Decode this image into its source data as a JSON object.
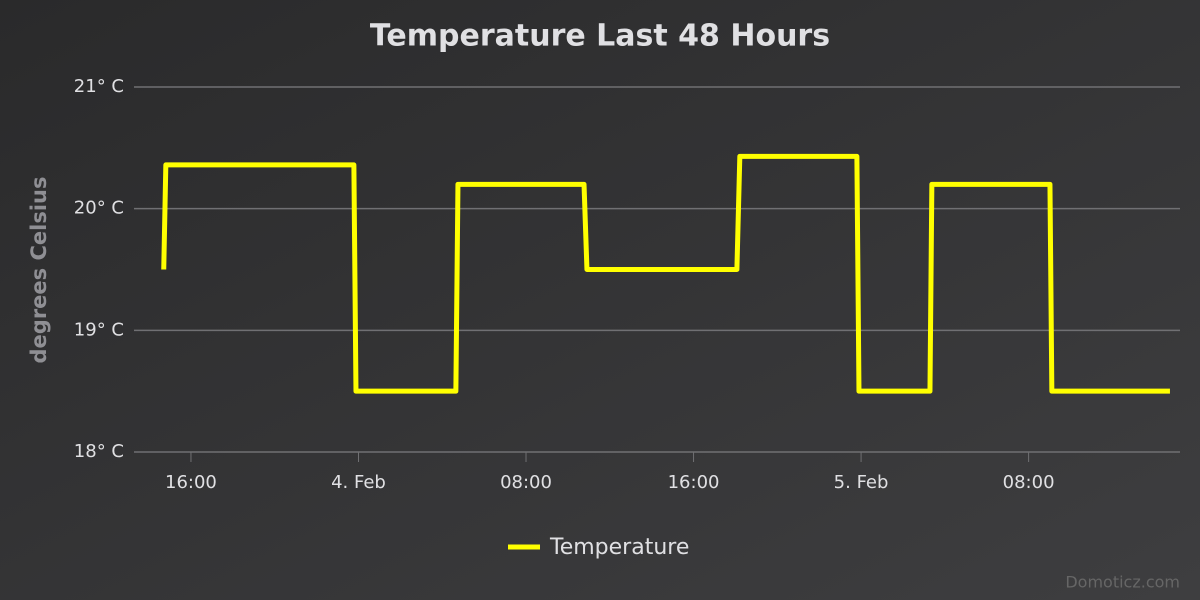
{
  "chart_data": {
    "type": "line",
    "title": "Temperature Last 48 Hours",
    "y_label": "degrees Celsius",
    "x": [
      14.7,
      14.8,
      23.78,
      23.88,
      28.65,
      28.75,
      34.77,
      34.91,
      42.07,
      42.21,
      47.8,
      47.9,
      51.29,
      51.38,
      57.02,
      57.11,
      62.75
    ],
    "series": [
      {
        "name": "Temperature",
        "color": "#ffff00",
        "values": [
          19.5,
          20.36,
          20.36,
          18.5,
          18.5,
          20.2,
          20.2,
          19.5,
          19.5,
          20.43,
          20.43,
          18.5,
          18.5,
          20.2,
          20.2,
          18.5,
          18.5
        ]
      }
    ],
    "xlim": [
      13.28,
      63.23
    ],
    "xticks": [
      {
        "value": 16,
        "label": "16:00"
      },
      {
        "value": 24,
        "label": "4. Feb"
      },
      {
        "value": 32,
        "label": "08:00"
      },
      {
        "value": 40,
        "label": "16:00"
      },
      {
        "value": 48,
        "label": "5. Feb"
      },
      {
        "value": 56,
        "label": "08:00"
      }
    ],
    "ylim": [
      18,
      21
    ],
    "yticks": [
      {
        "value": 18,
        "label": "18° C"
      },
      {
        "value": 19,
        "label": "19° C"
      },
      {
        "value": 20,
        "label": "20° C"
      },
      {
        "value": 21,
        "label": "21° C"
      }
    ],
    "grid": true,
    "legend": "bottom",
    "credits": "Domoticz.com"
  }
}
